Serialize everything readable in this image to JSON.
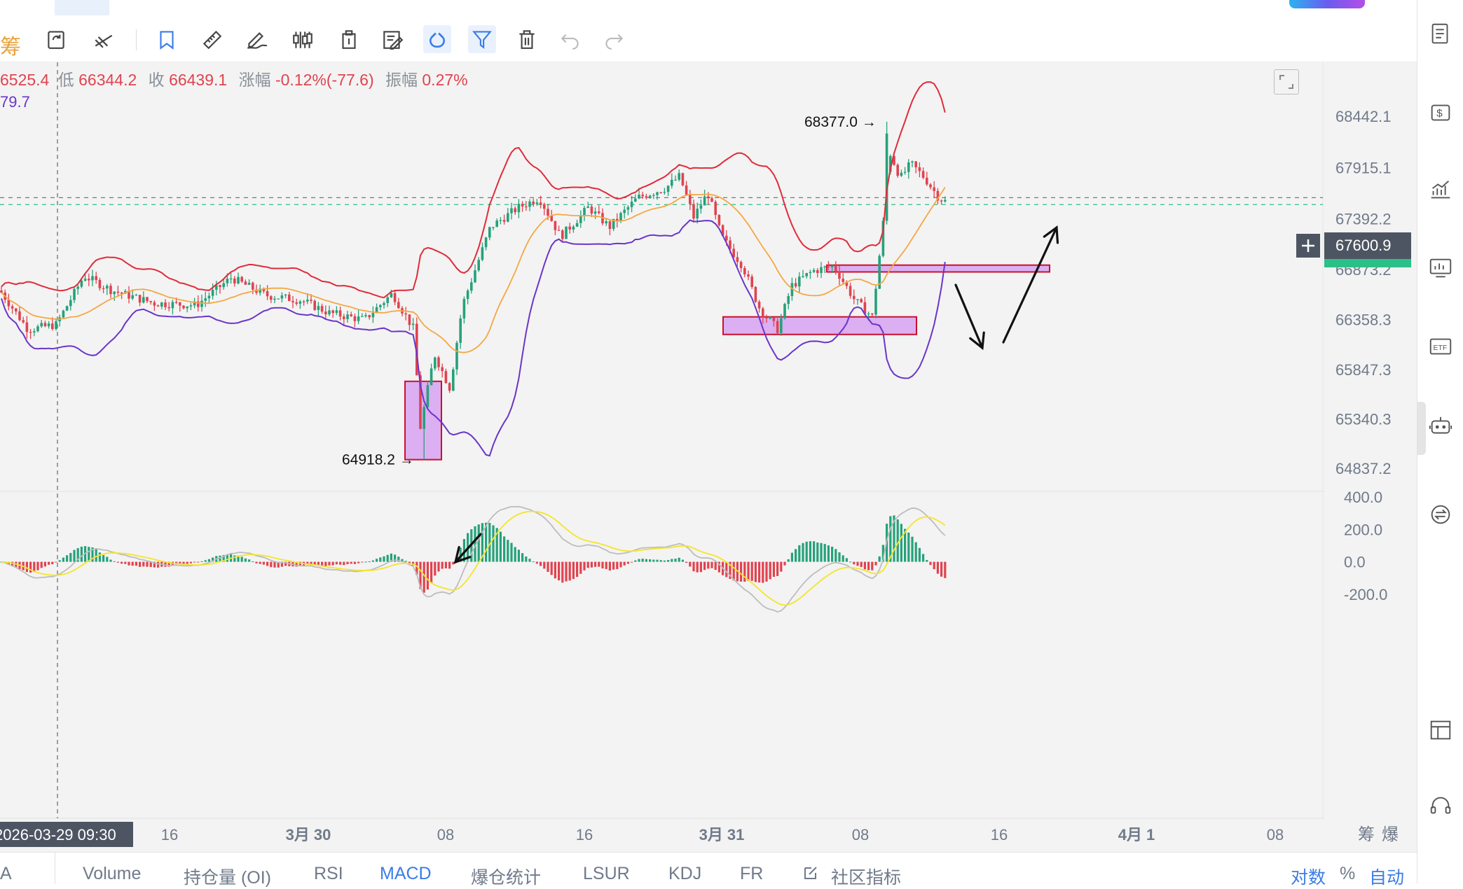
{
  "toolbar": {
    "left_glyph": "筹",
    "tools": [
      {
        "icon": "refresh-square-icon",
        "active": false
      },
      {
        "icon": "crosshair-line-icon",
        "active": false
      },
      {
        "icon": "bookmark-icon",
        "active": false
      },
      {
        "icon": "ruler-icon",
        "active": false
      },
      {
        "icon": "pen-wave-icon",
        "active": false
      },
      {
        "icon": "candles-icon",
        "active": false
      },
      {
        "icon": "clipboard-icon",
        "active": false
      },
      {
        "icon": "edit-note-icon",
        "active": false
      },
      {
        "icon": "magnet-icon",
        "active": true
      },
      {
        "icon": "filter-icon",
        "active": true
      },
      {
        "icon": "trash-icon",
        "active": false
      },
      {
        "icon": "undo-icon",
        "active": false
      },
      {
        "icon": "redo-icon",
        "active": false
      }
    ]
  },
  "legend": {
    "high_value": "6525.4",
    "low_label": "低",
    "low_value": "66344.2",
    "close_label": "收",
    "close_value": "66439.1",
    "change_label": "涨幅",
    "change_value": "-0.12%(-77.6)",
    "amp_label": "振幅",
    "amp_value": "0.27%",
    "indicator_value": "79.7"
  },
  "colors": {
    "up": "#26a17a",
    "down": "#e0434f",
    "boll_upper": "#e02b3a",
    "boll_mid": "#f5a742",
    "boll_lower": "#6a35c8",
    "zone_fill": "#d9a6f2",
    "zone_stroke": "#c8102e",
    "dif": "#bdbdbd",
    "dea": "#f3e52a",
    "accent": "#3a7de6",
    "price_tag_bg": "#4e5562",
    "green_tag": "#2bc087"
  },
  "chart_data": [
    {
      "type": "candlestick",
      "y_axis_ticks": [
        "68442.1",
        "67915.1",
        "67392.2",
        "66873.2",
        "66358.3",
        "65847.3",
        "65340.3",
        "64837.2"
      ],
      "ylim": [
        64600,
        68700
      ],
      "x_axis_ticks": [
        "2026-03-29 09:30",
        "16",
        "3月 30",
        "08",
        "16",
        "3月 31",
        "08",
        "16",
        "4月 1",
        "08"
      ],
      "current_price": "67600.9",
      "current_price_2": "67529.6",
      "annotations": [
        {
          "text": "68377.0 →",
          "price": 68377.0
        },
        {
          "text": "64918.2 →",
          "price": 64918.2
        }
      ],
      "overlays": [
        "Bollinger upper",
        "Bollinger middle",
        "Bollinger lower"
      ],
      "zones": [
        {
          "price_top": 65720,
          "price_bottom": 64918
        },
        {
          "price_top": 66380,
          "price_bottom": 66200
        },
        {
          "price_top": 66910,
          "price_bottom": 66840
        }
      ]
    },
    {
      "type": "bar",
      "indicator": "MACD",
      "y_axis_ticks": [
        "400.0",
        "200.0",
        "0.0",
        "-200.0"
      ],
      "ylim": [
        -330,
        430
      ]
    }
  ],
  "bottom_corner": {
    "chou": "筹",
    "bao": "爆"
  },
  "indicator_tabs": [
    {
      "label": "A",
      "active": false
    },
    {
      "label": "Volume",
      "active": false
    },
    {
      "label": "持仓量 (OI)",
      "active": false
    },
    {
      "label": "RSI",
      "active": false
    },
    {
      "label": "MACD",
      "active": true
    },
    {
      "label": "爆仓统计",
      "active": false
    },
    {
      "label": "LSUR",
      "active": false
    },
    {
      "label": "KDJ",
      "active": false
    },
    {
      "label": "FR",
      "active": false
    },
    {
      "label": "社区指标",
      "active": false
    }
  ],
  "bottom_right": {
    "log": "对数",
    "pct": "%",
    "auto": "自动"
  },
  "right_sidebar": [
    "document-icon",
    "dollar-tag-icon",
    "trend-chart-icon",
    "monitor-chart-icon",
    "etf-icon",
    "robot-icon",
    "swap-circle-icon",
    "layout-icon",
    "headset-icon"
  ]
}
